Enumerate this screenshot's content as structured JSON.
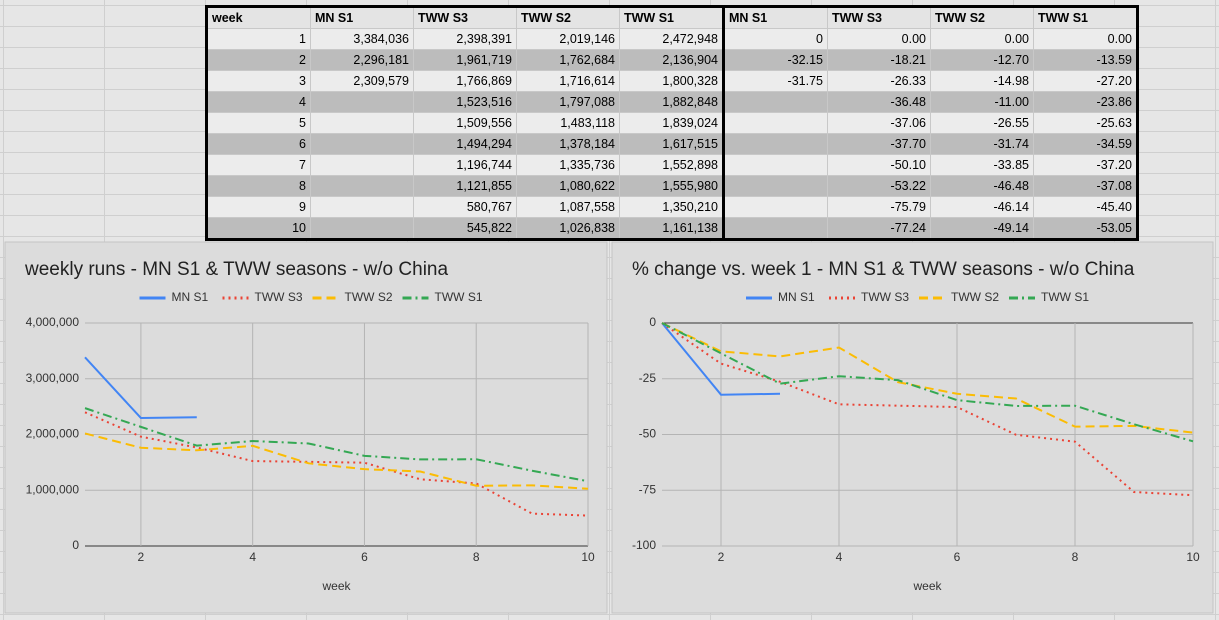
{
  "table": {
    "header": [
      "week",
      "MN S1",
      "TWW S3",
      "TWW S2",
      "TWW S1",
      "MN S1",
      "TWW S3",
      "TWW S2",
      "TWW S1"
    ],
    "rows": [
      [
        "1",
        "3,384,036",
        "2,398,391",
        "2,019,146",
        "2,472,948",
        "0",
        "0.00",
        "0.00",
        "0.00"
      ],
      [
        "2",
        "2,296,181",
        "1,961,719",
        "1,762,684",
        "2,136,904",
        "-32.15",
        "-18.21",
        "-12.70",
        "-13.59"
      ],
      [
        "3",
        "2,309,579",
        "1,766,869",
        "1,716,614",
        "1,800,328",
        "-31.75",
        "-26.33",
        "-14.98",
        "-27.20"
      ],
      [
        "4",
        null,
        "1,523,516",
        "1,797,088",
        "1,882,848",
        null,
        "-36.48",
        "-11.00",
        "-23.86"
      ],
      [
        "5",
        null,
        "1,509,556",
        "1,483,118",
        "1,839,024",
        null,
        "-37.06",
        "-26.55",
        "-25.63"
      ],
      [
        "6",
        null,
        "1,494,294",
        "1,378,184",
        "1,617,515",
        null,
        "-37.70",
        "-31.74",
        "-34.59"
      ],
      [
        "7",
        null,
        "1,196,744",
        "1,335,736",
        "1,552,898",
        null,
        "-50.10",
        "-33.85",
        "-37.20"
      ],
      [
        "8",
        null,
        "1,121,855",
        "1,080,622",
        "1,555,980",
        null,
        "-53.22",
        "-46.48",
        "-37.08"
      ],
      [
        "9",
        null,
        "580,767",
        "1,087,558",
        "1,350,210",
        null,
        "-75.79",
        "-46.14",
        "-45.40"
      ],
      [
        "10",
        null,
        "545,822",
        "1,026,838",
        "1,161,138",
        null,
        "-77.24",
        "-49.14",
        "-53.05"
      ]
    ]
  },
  "chart_data": [
    {
      "type": "line",
      "title": "weekly runs - MN S1 & TWW seasons - w/o China",
      "x_label": "week",
      "grid": true,
      "legend": "top",
      "x": [
        1,
        2,
        3,
        4,
        5,
        6,
        7,
        8,
        9,
        10
      ],
      "xlim": [
        1,
        10
      ],
      "xticks": [
        2,
        4,
        6,
        8,
        10
      ],
      "ylim": [
        0,
        4000000
      ],
      "yticks": [
        0,
        {
          "value": 1000000,
          "label": "1,000,000"
        },
        {
          "value": 2000000,
          "label": "2,000,000"
        },
        {
          "value": 3000000,
          "label": "3,000,000"
        },
        {
          "value": 4000000,
          "label": "4,000,000"
        }
      ],
      "series": [
        {
          "name": "MN S1",
          "color": "#4285f4",
          "style": "solid",
          "values": [
            3384036,
            2296181,
            2309579,
            null,
            null,
            null,
            null,
            null,
            null,
            null
          ]
        },
        {
          "name": "TWW S3",
          "color": "#ea4335",
          "style": "dotted",
          "values": [
            2398391,
            1961719,
            1766869,
            1523516,
            1509556,
            1494294,
            1196744,
            1121855,
            580767,
            545822
          ]
        },
        {
          "name": "TWW S2",
          "color": "#fbbc04",
          "style": "dashed",
          "values": [
            2019146,
            1762684,
            1716614,
            1797088,
            1483118,
            1378184,
            1335736,
            1080622,
            1087558,
            1026838
          ]
        },
        {
          "name": "TWW S1",
          "color": "#34a853",
          "style": "dashdot",
          "values": [
            2472948,
            2136904,
            1800328,
            1882848,
            1839024,
            1617515,
            1552898,
            1555980,
            1350210,
            1161138
          ]
        }
      ]
    },
    {
      "type": "line",
      "title": "% change vs. week 1 - MN S1 & TWW seasons - w/o China",
      "x_label": "week",
      "grid": true,
      "legend": "top",
      "x": [
        1,
        2,
        3,
        4,
        5,
        6,
        7,
        8,
        9,
        10
      ],
      "xlim": [
        1,
        10
      ],
      "xticks": [
        2,
        4,
        6,
        8,
        10
      ],
      "ylim": [
        -100,
        0
      ],
      "yticks": [
        -100,
        -75,
        -50,
        -25,
        0
      ],
      "series": [
        {
          "name": "MN S1",
          "color": "#4285f4",
          "style": "solid",
          "values": [
            0,
            -32.15,
            -31.75,
            null,
            null,
            null,
            null,
            null,
            null,
            null
          ]
        },
        {
          "name": "TWW S3",
          "color": "#ea4335",
          "style": "dotted",
          "values": [
            0,
            -18.21,
            -26.33,
            -36.48,
            -37.06,
            -37.7,
            -50.1,
            -53.22,
            -75.79,
            -77.24
          ]
        },
        {
          "name": "TWW S2",
          "color": "#fbbc04",
          "style": "dashed",
          "values": [
            0,
            -12.7,
            -14.98,
            -11,
            -26.55,
            -31.74,
            -33.85,
            -46.48,
            -46.14,
            -49.14
          ]
        },
        {
          "name": "TWW S1",
          "color": "#34a853",
          "style": "dashdot",
          "values": [
            0,
            -13.59,
            -27.2,
            -23.86,
            -25.63,
            -34.59,
            -37.2,
            -37.08,
            -45.4,
            -53.05
          ]
        }
      ]
    }
  ]
}
